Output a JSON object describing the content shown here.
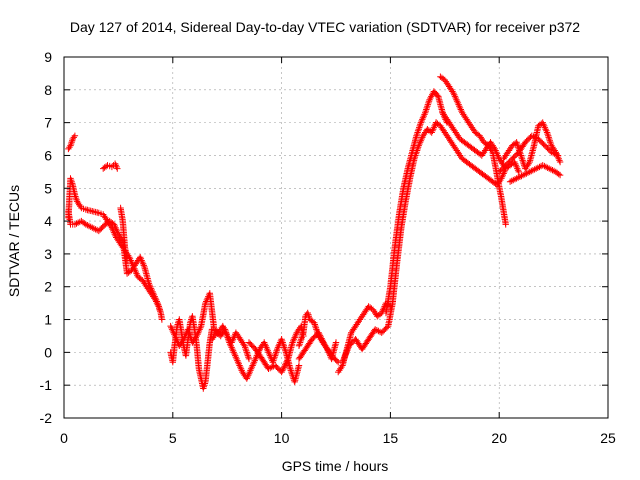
{
  "chart_data": {
    "type": "scatter",
    "title": "Day 127 of 2014, Sidereal Day-to-day VTEC variation (SDTVAR) for receiver p372",
    "xlabel": "GPS time / hours",
    "ylabel": "SDTVAR / TECUs",
    "xlim": [
      0,
      25
    ],
    "ylim": [
      -2,
      9
    ],
    "xticks": [
      "0",
      "5",
      "10",
      "15",
      "20",
      "25"
    ],
    "yticks": [
      "-2",
      "-1",
      "0",
      "1",
      "2",
      "3",
      "4",
      "5",
      "6",
      "7",
      "8",
      "9"
    ],
    "grid": true,
    "marker": "+",
    "series": [
      {
        "name": "SDTVAR",
        "color": "#ff0000",
        "segments": [
          {
            "x": [
              0.2,
              0.3,
              0.4,
              0.5
            ],
            "y": [
              6.2,
              6.3,
              6.5,
              6.6
            ]
          },
          {
            "x": [
              1.8,
              2.0,
              2.2,
              2.35,
              2.45
            ],
            "y": [
              5.6,
              5.7,
              5.65,
              5.75,
              5.6
            ]
          },
          {
            "x": [
              0.2,
              0.3,
              0.4,
              0.5,
              0.6,
              0.7,
              0.8,
              1.0,
              1.3,
              1.6,
              1.8,
              2.0,
              2.2,
              2.4,
              2.6,
              2.8,
              3.0,
              3.2,
              3.4,
              3.6,
              3.8,
              4.0,
              4.2,
              4.35,
              4.45,
              4.5
            ],
            "y": [
              4.1,
              5.3,
              5.1,
              4.8,
              4.6,
              4.5,
              4.4,
              4.35,
              4.3,
              4.25,
              4.2,
              4.0,
              3.8,
              3.5,
              3.3,
              3.1,
              2.9,
              2.6,
              2.3,
              2.2,
              2.0,
              1.8,
              1.6,
              1.4,
              1.2,
              1.0
            ]
          },
          {
            "x": [
              0.2,
              0.3,
              0.5,
              0.8,
              1.0,
              1.3,
              1.6,
              1.9,
              2.1,
              2.3,
              2.5,
              2.7,
              2.9,
              3.1,
              3.3,
              3.5,
              3.7,
              3.9,
              4.1,
              4.3,
              4.4
            ],
            "y": [
              4.3,
              3.9,
              3.9,
              4.0,
              3.9,
              3.8,
              3.7,
              3.9,
              4.0,
              3.9,
              3.6,
              3.4,
              2.4,
              2.5,
              2.7,
              2.9,
              2.6,
              2.1,
              1.8,
              1.5,
              1.3
            ]
          },
          {
            "x": [
              2.6,
              2.7,
              2.75,
              2.8,
              2.9
            ],
            "y": [
              4.4,
              4.0,
              3.6,
              3.2,
              2.8
            ]
          },
          {
            "x": [
              4.9,
              5.0,
              5.1,
              5.2,
              5.3,
              5.4,
              5.5,
              5.6,
              5.7,
              5.8,
              5.9,
              6.0,
              6.1,
              6.2,
              6.3,
              6.4,
              6.5,
              6.6,
              6.7,
              6.8
            ],
            "y": [
              0.0,
              -0.3,
              0.3,
              0.8,
              1.0,
              0.6,
              0.2,
              -0.1,
              0.4,
              0.9,
              1.1,
              0.7,
              0.2,
              -0.5,
              -0.8,
              -1.1,
              -0.9,
              -0.3,
              0.3,
              0.7
            ]
          },
          {
            "x": [
              4.9,
              5.1,
              5.3,
              5.5,
              5.7,
              5.9,
              6.1,
              6.3,
              6.5,
              6.7,
              6.9,
              7.1,
              7.3,
              7.5,
              7.7,
              7.9,
              8.1,
              8.3,
              8.5
            ],
            "y": [
              0.8,
              0.5,
              0.2,
              0.4,
              0.7,
              0.3,
              0.5,
              0.8,
              1.5,
              1.8,
              0.7,
              0.6,
              0.8,
              0.5,
              0.3,
              0.6,
              0.4,
              0.2,
              -0.2
            ]
          },
          {
            "x": [
              6.8,
              7.0,
              7.2,
              7.4,
              7.6,
              7.8,
              8.0,
              8.2,
              8.4,
              8.6,
              8.8,
              9.0,
              9.2,
              9.4,
              9.6,
              9.8,
              10.0,
              10.2,
              10.4,
              10.6,
              10.8
            ],
            "y": [
              0.4,
              0.6,
              0.5,
              0.7,
              0.3,
              0.0,
              -0.3,
              -0.6,
              -0.8,
              -0.5,
              -0.2,
              0.1,
              0.3,
              0.0,
              -0.3,
              0.1,
              0.4,
              0.0,
              -0.5,
              -0.9,
              -0.4
            ]
          },
          {
            "x": [
              8.5,
              8.8,
              9.1,
              9.4,
              9.7,
              10.0,
              10.3,
              10.5,
              10.7,
              10.9,
              11.0
            ],
            "y": [
              0.3,
              0.1,
              -0.2,
              -0.5,
              -0.4,
              -0.6,
              -0.2,
              0.3,
              0.6,
              0.8,
              0.5
            ]
          },
          {
            "x": [
              10.8,
              11.0,
              11.1,
              11.2,
              11.3,
              11.5,
              11.7,
              11.9,
              12.1,
              12.3,
              12.5
            ],
            "y": [
              0.2,
              0.6,
              1.1,
              1.2,
              1.0,
              0.9,
              0.5,
              0.3,
              0.1,
              -0.2,
              0.3
            ]
          },
          {
            "x": [
              10.8,
              11.1,
              11.4,
              11.7,
              12.0,
              12.3,
              12.6
            ],
            "y": [
              -0.2,
              0.1,
              0.4,
              0.6,
              0.2,
              -0.1,
              -0.3
            ]
          },
          {
            "x": [
              12.6,
              12.8,
              13.0,
              13.2,
              13.4,
              13.6,
              13.8,
              14.0,
              14.2,
              14.4,
              14.6,
              14.8,
              15.0
            ],
            "y": [
              -0.6,
              -0.4,
              0.1,
              0.6,
              0.8,
              1.0,
              1.2,
              1.4,
              1.3,
              1.1,
              1.2,
              1.5,
              1.4
            ]
          },
          {
            "x": [
              12.8,
              13.1,
              13.4,
              13.7,
              14.0,
              14.3,
              14.6,
              14.9,
              15.1,
              15.3,
              15.5,
              15.7,
              15.9,
              16.1,
              16.3,
              16.5,
              16.7,
              16.9,
              17.1
            ],
            "y": [
              -0.3,
              0.2,
              0.4,
              0.1,
              0.4,
              0.7,
              0.6,
              0.8,
              1.5,
              2.7,
              3.8,
              4.6,
              5.3,
              5.9,
              6.3,
              6.6,
              6.8,
              6.7,
              7.0
            ]
          },
          {
            "x": [
              14.8,
              15.0,
              15.2,
              15.4,
              15.6,
              15.8,
              16.0,
              16.2,
              16.4,
              16.6,
              16.8,
              17.0,
              17.2,
              17.4,
              17.6
            ],
            "y": [
              1.2,
              2.0,
              3.2,
              4.2,
              5.0,
              5.6,
              6.1,
              6.6,
              7.0,
              7.3,
              7.7,
              7.95,
              7.8,
              7.3,
              7.0
            ]
          },
          {
            "x": [
              17.3,
              17.5,
              17.7,
              17.9,
              18.1,
              18.3,
              18.5,
              18.7,
              18.9,
              19.1,
              19.3,
              19.5,
              19.7,
              19.9,
              20.1,
              20.3
            ],
            "y": [
              8.4,
              8.3,
              8.1,
              7.9,
              7.6,
              7.3,
              7.1,
              6.9,
              6.7,
              6.6,
              6.4,
              6.3,
              6.1,
              5.4,
              4.7,
              3.9
            ]
          },
          {
            "x": [
              17.1,
              17.3,
              17.5,
              17.7,
              17.9,
              18.1,
              18.3,
              18.5,
              18.7,
              18.9,
              19.1,
              19.3,
              19.5,
              19.7,
              19.9,
              20.1,
              20.3,
              20.5,
              20.7,
              20.9
            ],
            "y": [
              7.0,
              6.9,
              6.7,
              6.5,
              6.3,
              6.1,
              5.9,
              5.8,
              5.7,
              5.6,
              5.5,
              5.4,
              5.3,
              5.2,
              5.1,
              5.3,
              5.6,
              5.7,
              5.8,
              5.5
            ]
          },
          {
            "x": [
              17.4,
              17.6,
              17.8,
              18.0,
              18.2,
              18.4,
              18.6,
              18.8,
              19.0,
              19.2,
              19.4,
              19.6,
              19.8,
              20.0,
              20.2
            ],
            "y": [
              7.3,
              7.1,
              6.9,
              6.7,
              6.5,
              6.4,
              6.3,
              6.2,
              6.1,
              6.0,
              6.2,
              6.4,
              6.2,
              5.9,
              5.7
            ]
          },
          {
            "x": [
              20.2,
              20.4,
              20.6,
              20.8,
              21.0,
              21.2,
              21.4,
              21.6,
              21.8,
              22.0,
              22.2,
              22.4,
              22.6,
              22.8
            ],
            "y": [
              5.9,
              6.1,
              6.3,
              6.4,
              6.0,
              5.6,
              5.8,
              6.3,
              6.9,
              7.0,
              6.7,
              6.3,
              6.1,
              5.8
            ]
          },
          {
            "x": [
              20.0,
              20.3,
              20.6,
              20.9,
              21.2,
              21.5,
              21.8,
              22.1,
              22.4,
              22.7
            ],
            "y": [
              5.5,
              5.7,
              5.9,
              6.1,
              6.4,
              6.6,
              6.5,
              6.3,
              6.1,
              6.0
            ]
          },
          {
            "x": [
              20.5,
              20.8,
              21.1,
              21.4,
              21.7,
              22.0,
              22.3,
              22.6,
              22.8
            ],
            "y": [
              5.2,
              5.3,
              5.4,
              5.5,
              5.6,
              5.7,
              5.6,
              5.5,
              5.4
            ]
          }
        ]
      }
    ]
  }
}
